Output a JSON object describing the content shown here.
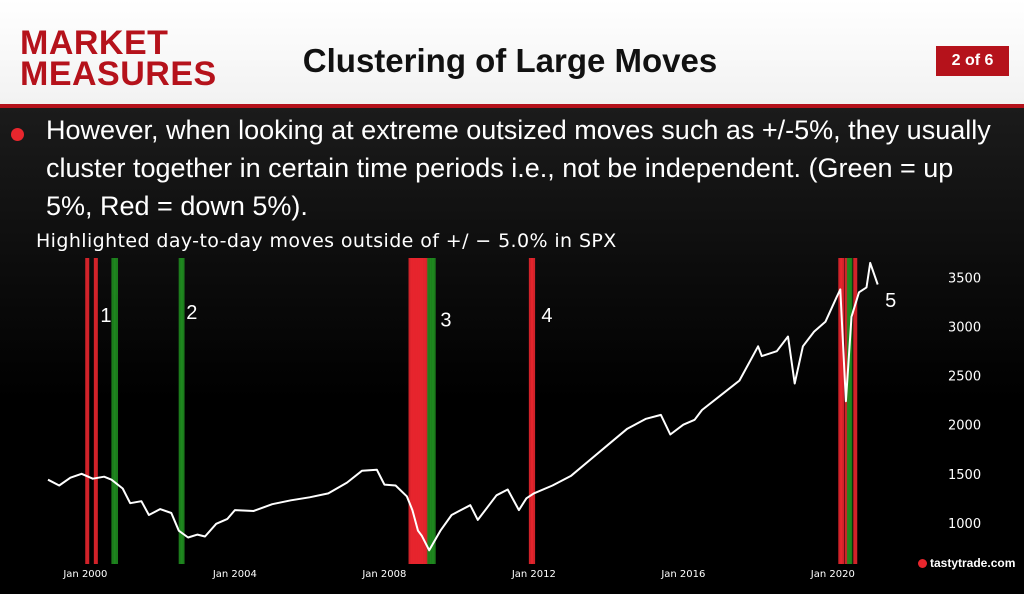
{
  "header": {
    "logo_line1": "MARKET",
    "logo_line2": "MEASURES",
    "title": "Clustering of Large Moves",
    "page_badge": "2 of 6"
  },
  "bullet": {
    "text": "However, when looking at extreme outsized moves such as +/-5%, they usually cluster together in certain time periods i.e., not be independent. (Green = up 5%, Red = down 5%)."
  },
  "watermark": "tastytrade.com",
  "colors": {
    "brand_red": "#b5121b",
    "up_move": "#1f8a1f",
    "down_move": "#e8262d",
    "price_line": "#ffffff"
  },
  "chart_data": {
    "type": "line",
    "title": "Highlighted day-to-day moves outside of +/ − 5.0% in SPX",
    "xlabel": "",
    "ylabel": "",
    "xlim": [
      1999.0,
      2022.6
    ],
    "ylim": [
      580,
      3700
    ],
    "y_axis_position": "right",
    "yticks": [
      1000,
      1500,
      2000,
      2500,
      3000,
      3500
    ],
    "xticks": [
      {
        "x": 2000,
        "label": "Jan 2000"
      },
      {
        "x": 2004,
        "label": "Jan 2004"
      },
      {
        "x": 2008,
        "label": "Jan 2008"
      },
      {
        "x": 2012,
        "label": "Jan 2012"
      },
      {
        "x": 2016,
        "label": "Jan 2016"
      },
      {
        "x": 2020,
        "label": "Jan 2020"
      }
    ],
    "grid": false,
    "series": [
      {
        "name": "SPX",
        "x": [
          1999.0,
          1999.3,
          1999.6,
          1999.9,
          2000.2,
          2000.5,
          2000.7,
          2001.0,
          2001.2,
          2001.5,
          2001.7,
          2002.0,
          2002.3,
          2002.5,
          2002.75,
          2003.0,
          2003.2,
          2003.5,
          2003.8,
          2004.0,
          2004.5,
          2005.0,
          2005.5,
          2006.0,
          2006.5,
          2007.0,
          2007.4,
          2007.8,
          2008.0,
          2008.3,
          2008.6,
          2008.75,
          2008.9,
          2009.0,
          2009.2,
          2009.5,
          2009.8,
          2010.0,
          2010.3,
          2010.5,
          2010.8,
          2011.0,
          2011.3,
          2011.6,
          2011.8,
          2012.0,
          2012.5,
          2013.0,
          2013.5,
          2014.0,
          2014.5,
          2015.0,
          2015.4,
          2015.65,
          2016.0,
          2016.3,
          2016.5,
          2017.0,
          2017.5,
          2018.0,
          2018.1,
          2018.5,
          2018.8,
          2018.98,
          2019.2,
          2019.5,
          2019.8,
          2020.1,
          2020.2,
          2020.35,
          2020.5,
          2020.7,
          2020.9,
          2021.0,
          2021.2
        ],
        "values": [
          1440,
          1380,
          1460,
          1500,
          1450,
          1470,
          1440,
          1350,
          1200,
          1220,
          1080,
          1140,
          1100,
          920,
          850,
          880,
          860,
          990,
          1040,
          1130,
          1120,
          1190,
          1230,
          1260,
          1300,
          1410,
          1530,
          1540,
          1390,
          1380,
          1270,
          1130,
          920,
          870,
          720,
          920,
          1080,
          1120,
          1180,
          1030,
          1180,
          1280,
          1340,
          1130,
          1250,
          1300,
          1380,
          1480,
          1640,
          1800,
          1960,
          2060,
          2100,
          1900,
          2000,
          2050,
          2150,
          2300,
          2450,
          2800,
          2700,
          2750,
          2900,
          2420,
          2800,
          2950,
          3050,
          3300,
          3380,
          2240,
          3100,
          3350,
          3400,
          3650,
          3430
        ]
      }
    ],
    "highlight_bands": [
      {
        "x": 2000.05,
        "direction": "down"
      },
      {
        "x": 2000.28,
        "direction": "down"
      },
      {
        "x": 2000.75,
        "direction": "up"
      },
      {
        "x": 2000.82,
        "direction": "up"
      },
      {
        "x": 2002.55,
        "direction": "up"
      },
      {
        "x": 2002.6,
        "direction": "up"
      },
      {
        "x": 2008.7,
        "direction": "down"
      },
      {
        "x": 2008.75,
        "direction": "down"
      },
      {
        "x": 2008.8,
        "direction": "down"
      },
      {
        "x": 2008.85,
        "direction": "down"
      },
      {
        "x": 2008.9,
        "direction": "down"
      },
      {
        "x": 2008.95,
        "direction": "down"
      },
      {
        "x": 2009.0,
        "direction": "down"
      },
      {
        "x": 2009.05,
        "direction": "down"
      },
      {
        "x": 2009.12,
        "direction": "down"
      },
      {
        "x": 2009.2,
        "direction": "up"
      },
      {
        "x": 2009.27,
        "direction": "up"
      },
      {
        "x": 2009.32,
        "direction": "up"
      },
      {
        "x": 2011.92,
        "direction": "down"
      },
      {
        "x": 2011.98,
        "direction": "down"
      },
      {
        "x": 2020.2,
        "direction": "down"
      },
      {
        "x": 2020.25,
        "direction": "down"
      },
      {
        "x": 2020.37,
        "direction": "down"
      },
      {
        "x": 2020.43,
        "direction": "up"
      },
      {
        "x": 2020.47,
        "direction": "up"
      },
      {
        "x": 2020.6,
        "direction": "down"
      }
    ],
    "annotations": [
      {
        "text": "1",
        "x": 2000.4,
        "y": 3050
      },
      {
        "text": "2",
        "x": 2002.7,
        "y": 3080
      },
      {
        "text": "3",
        "x": 2009.5,
        "y": 3000
      },
      {
        "text": "4",
        "x": 2012.2,
        "y": 3050
      },
      {
        "text": "5",
        "x": 2021.4,
        "y": 3200
      }
    ]
  }
}
